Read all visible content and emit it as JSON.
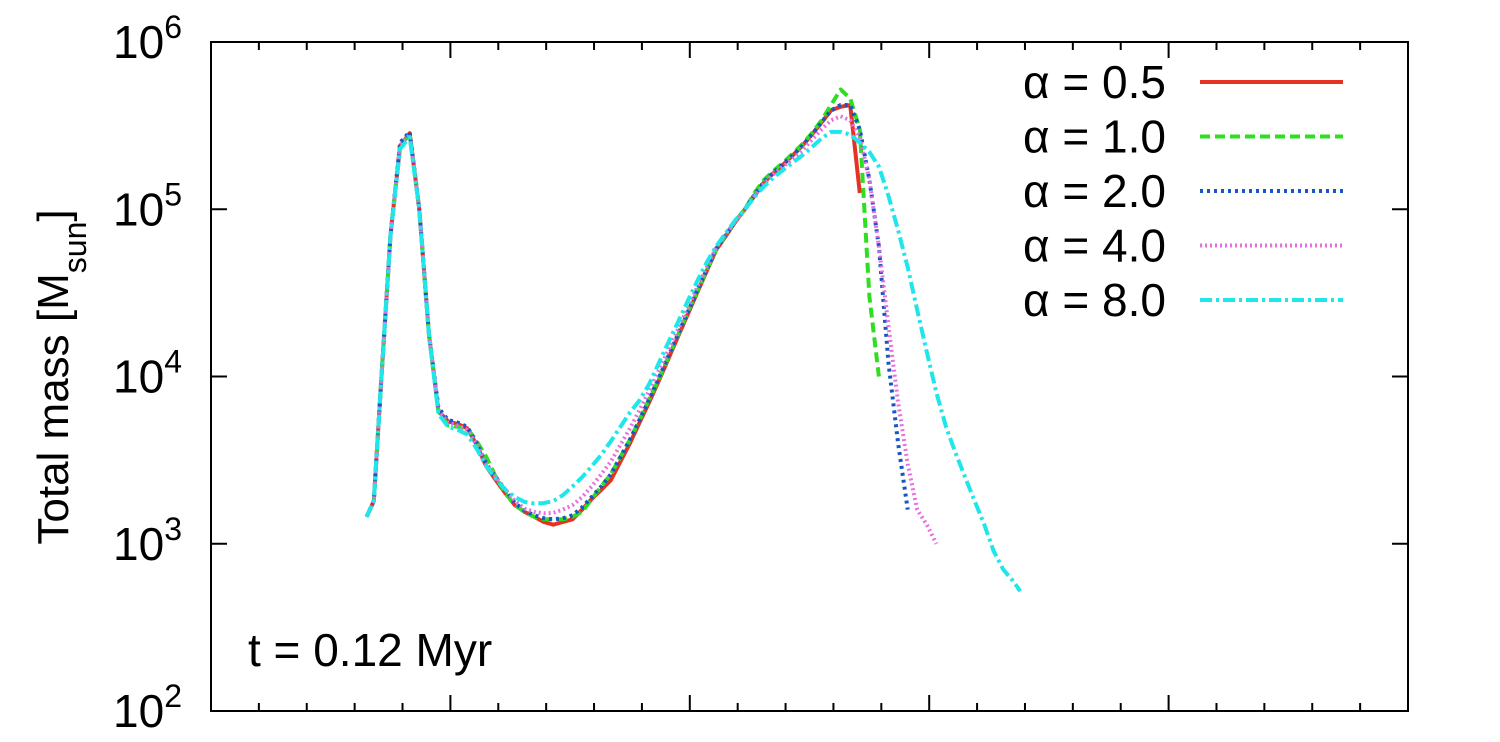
{
  "chart_data": {
    "type": "line",
    "ylabel": "Total mass [M",
    "ylabel_sub": "sun",
    "ylabel_close": "]",
    "xlabel": "",
    "title": "",
    "y_scale": "log",
    "ylim": [
      100,
      1000000
    ],
    "xlim": [
      0,
      1
    ],
    "y_ticks": [
      {
        "base": "10",
        "exp": "2",
        "value": 100
      },
      {
        "base": "10",
        "exp": "3",
        "value": 1000
      },
      {
        "base": "10",
        "exp": "4",
        "value": 10000
      },
      {
        "base": "10",
        "exp": "5",
        "value": 100000
      },
      {
        "base": "10",
        "exp": "6",
        "value": 1000000
      }
    ],
    "x_major_ticks": [
      0,
      0.2,
      0.4,
      0.6,
      0.8,
      1.0
    ],
    "x_minor_ticks": [
      0.04,
      0.08,
      0.12,
      0.16,
      0.24,
      0.28,
      0.32,
      0.36,
      0.44,
      0.48,
      0.52,
      0.56,
      0.64,
      0.68,
      0.72,
      0.76,
      0.84,
      0.88,
      0.92,
      0.96
    ],
    "annotation": "t = 0.12 Myr",
    "legend_position": "top-right",
    "grid": false,
    "series": [
      {
        "name": "α = 0.5",
        "color": "#e53222",
        "dash": "solid",
        "x": [
          0.13,
          0.136,
          0.142,
          0.15,
          0.158,
          0.166,
          0.174,
          0.182,
          0.19,
          0.198,
          0.206,
          0.214,
          0.222,
          0.23,
          0.238,
          0.246,
          0.254,
          0.262,
          0.27,
          0.278,
          0.286,
          0.294,
          0.302,
          0.31,
          0.318,
          0.326,
          0.334,
          0.342,
          0.35,
          0.358,
          0.366,
          0.374,
          0.382,
          0.39,
          0.398,
          0.406,
          0.414,
          0.422,
          0.43,
          0.438,
          0.446,
          0.454,
          0.462,
          0.47,
          0.478,
          0.486,
          0.494,
          0.502,
          0.51,
          0.518,
          0.526,
          0.534,
          0.542,
          0.55,
          0.558,
          0.566,
          0.574,
          0.582,
          0.59,
          0.598,
          0.606,
          0.614,
          0.622,
          0.628,
          0.63,
          0.64,
          0.66
        ],
        "y": [
          1450,
          1800,
          9000,
          70000,
          240000,
          285000,
          100000,
          18000,
          6200,
          5400,
          5200,
          4900,
          3900,
          2900,
          2400,
          2000,
          1700,
          1550,
          1450,
          1350,
          1300,
          1350,
          1400,
          1600,
          1850,
          2100,
          2400,
          3100,
          4000,
          5300,
          7000,
          9400,
          12700,
          17200,
          23300,
          31500,
          42500,
          57000,
          69000,
          84000,
          100000,
          120000,
          145000,
          165000,
          185000,
          210000,
          240000,
          280000,
          330000,
          390000,
          410000,
          420000,
          125000,
          null,
          null,
          null,
          null,
          null,
          null,
          null,
          null,
          null,
          null,
          null,
          null,
          null,
          null
        ]
      },
      {
        "name": "α = 1.0",
        "color": "#2fde20",
        "dash": "10,5",
        "x": [
          0.13,
          0.136,
          0.142,
          0.15,
          0.158,
          0.166,
          0.174,
          0.182,
          0.19,
          0.198,
          0.206,
          0.214,
          0.222,
          0.23,
          0.238,
          0.246,
          0.254,
          0.262,
          0.27,
          0.278,
          0.286,
          0.294,
          0.302,
          0.31,
          0.318,
          0.326,
          0.334,
          0.342,
          0.35,
          0.358,
          0.366,
          0.374,
          0.382,
          0.39,
          0.398,
          0.406,
          0.414,
          0.422,
          0.43,
          0.438,
          0.446,
          0.454,
          0.462,
          0.47,
          0.478,
          0.486,
          0.494,
          0.502,
          0.51,
          0.518,
          0.526,
          0.534,
          0.542,
          0.55,
          0.558
        ],
        "y": [
          1450,
          1800,
          9000,
          70000,
          240000,
          280000,
          100000,
          18000,
          6200,
          5100,
          5000,
          4900,
          4100,
          3300,
          2500,
          2000,
          1700,
          1550,
          1450,
          1400,
          1400,
          1400,
          1450,
          1550,
          1850,
          2200,
          2600,
          3300,
          4200,
          5500,
          7300,
          9600,
          13000,
          17600,
          24000,
          32000,
          43000,
          57000,
          70000,
          85000,
          100000,
          125000,
          150000,
          170000,
          190000,
          215000,
          245000,
          285000,
          340000,
          420000,
          520000,
          460000,
          300000,
          30000,
          10000
        ]
      },
      {
        "name": "α = 2.0",
        "color": "#1657c4",
        "dash": "3,4",
        "x": [
          0.13,
          0.136,
          0.142,
          0.15,
          0.158,
          0.166,
          0.174,
          0.182,
          0.19,
          0.198,
          0.206,
          0.214,
          0.222,
          0.23,
          0.238,
          0.246,
          0.254,
          0.262,
          0.27,
          0.278,
          0.286,
          0.294,
          0.302,
          0.31,
          0.318,
          0.326,
          0.334,
          0.342,
          0.35,
          0.358,
          0.366,
          0.374,
          0.382,
          0.39,
          0.398,
          0.406,
          0.414,
          0.422,
          0.43,
          0.438,
          0.446,
          0.454,
          0.462,
          0.47,
          0.478,
          0.486,
          0.494,
          0.502,
          0.51,
          0.518,
          0.526,
          0.534,
          0.542,
          0.55,
          0.558,
          0.566,
          0.574,
          0.582
        ],
        "y": [
          1450,
          1800,
          9000,
          70000,
          250000,
          290000,
          100000,
          18000,
          6500,
          5500,
          5300,
          5000,
          4000,
          3000,
          2500,
          2100,
          1750,
          1580,
          1480,
          1420,
          1400,
          1420,
          1480,
          1650,
          1900,
          2200,
          2600,
          3300,
          4200,
          5500,
          7300,
          9800,
          13200,
          17800,
          24000,
          32500,
          43500,
          58000,
          70000,
          85000,
          100000,
          122000,
          146000,
          166000,
          186000,
          210000,
          240000,
          280000,
          330000,
          390000,
          420000,
          420000,
          300000,
          150000,
          60000,
          12000,
          4000,
          1600
        ]
      },
      {
        "name": "α = 4.0",
        "color": "#e76fe0",
        "dash": "2,3",
        "x": [
          0.13,
          0.136,
          0.142,
          0.15,
          0.158,
          0.166,
          0.174,
          0.182,
          0.19,
          0.198,
          0.206,
          0.214,
          0.222,
          0.23,
          0.238,
          0.246,
          0.254,
          0.262,
          0.27,
          0.278,
          0.286,
          0.294,
          0.302,
          0.31,
          0.318,
          0.326,
          0.334,
          0.342,
          0.35,
          0.358,
          0.366,
          0.374,
          0.382,
          0.39,
          0.398,
          0.406,
          0.414,
          0.422,
          0.43,
          0.438,
          0.446,
          0.454,
          0.462,
          0.47,
          0.478,
          0.486,
          0.494,
          0.502,
          0.51,
          0.518,
          0.526,
          0.534,
          0.542,
          0.55,
          0.558,
          0.566,
          0.574,
          0.582,
          0.59,
          0.598,
          0.606,
          0.614
        ],
        "y": [
          1450,
          1800,
          9000,
          70000,
          240000,
          280000,
          100000,
          18000,
          6300,
          5300,
          5100,
          4800,
          3900,
          3000,
          2500,
          2100,
          1800,
          1620,
          1550,
          1520,
          1530,
          1600,
          1700,
          1900,
          2200,
          2600,
          3100,
          3900,
          4900,
          6300,
          8200,
          10800,
          14400,
          19000,
          25500,
          34000,
          45000,
          59000,
          71000,
          85000,
          100000,
          120000,
          142000,
          162000,
          180000,
          200000,
          225000,
          260000,
          300000,
          340000,
          360000,
          340000,
          270000,
          150000,
          60000,
          20000,
          7000,
          3000,
          1600,
          1300,
          1000,
          null
        ]
      },
      {
        "name": "α = 8.0",
        "color": "#1ee6ea",
        "dash": "12,4,3,4",
        "x": [
          0.13,
          0.136,
          0.142,
          0.15,
          0.158,
          0.166,
          0.174,
          0.182,
          0.19,
          0.198,
          0.206,
          0.214,
          0.222,
          0.23,
          0.238,
          0.246,
          0.254,
          0.262,
          0.27,
          0.278,
          0.286,
          0.294,
          0.302,
          0.31,
          0.318,
          0.326,
          0.334,
          0.342,
          0.35,
          0.358,
          0.366,
          0.374,
          0.382,
          0.39,
          0.398,
          0.406,
          0.414,
          0.422,
          0.43,
          0.438,
          0.446,
          0.454,
          0.462,
          0.47,
          0.478,
          0.486,
          0.494,
          0.502,
          0.51,
          0.518,
          0.526,
          0.534,
          0.542,
          0.55,
          0.558,
          0.566,
          0.574,
          0.582,
          0.59,
          0.598,
          0.606,
          0.614,
          0.622,
          0.63,
          0.638,
          0.646,
          0.654,
          0.662,
          0.67,
          0.676
        ],
        "y": [
          1450,
          1800,
          9000,
          70000,
          230000,
          270000,
          100000,
          18000,
          6000,
          5000,
          4800,
          4500,
          3700,
          2900,
          2450,
          2100,
          1900,
          1780,
          1740,
          1750,
          1800,
          1950,
          2200,
          2500,
          2900,
          3400,
          4100,
          5000,
          6100,
          7200,
          9000,
          12000,
          16000,
          21000,
          28000,
          37000,
          48000,
          60000,
          72000,
          86000,
          100000,
          118000,
          137000,
          155000,
          172000,
          190000,
          210000,
          235000,
          265000,
          290000,
          290000,
          280000,
          250000,
          220000,
          180000,
          120000,
          75000,
          45000,
          25000,
          14000,
          8000,
          5000,
          3500,
          2500,
          1800,
          1300,
          900,
          700,
          600,
          520
        ]
      }
    ]
  }
}
